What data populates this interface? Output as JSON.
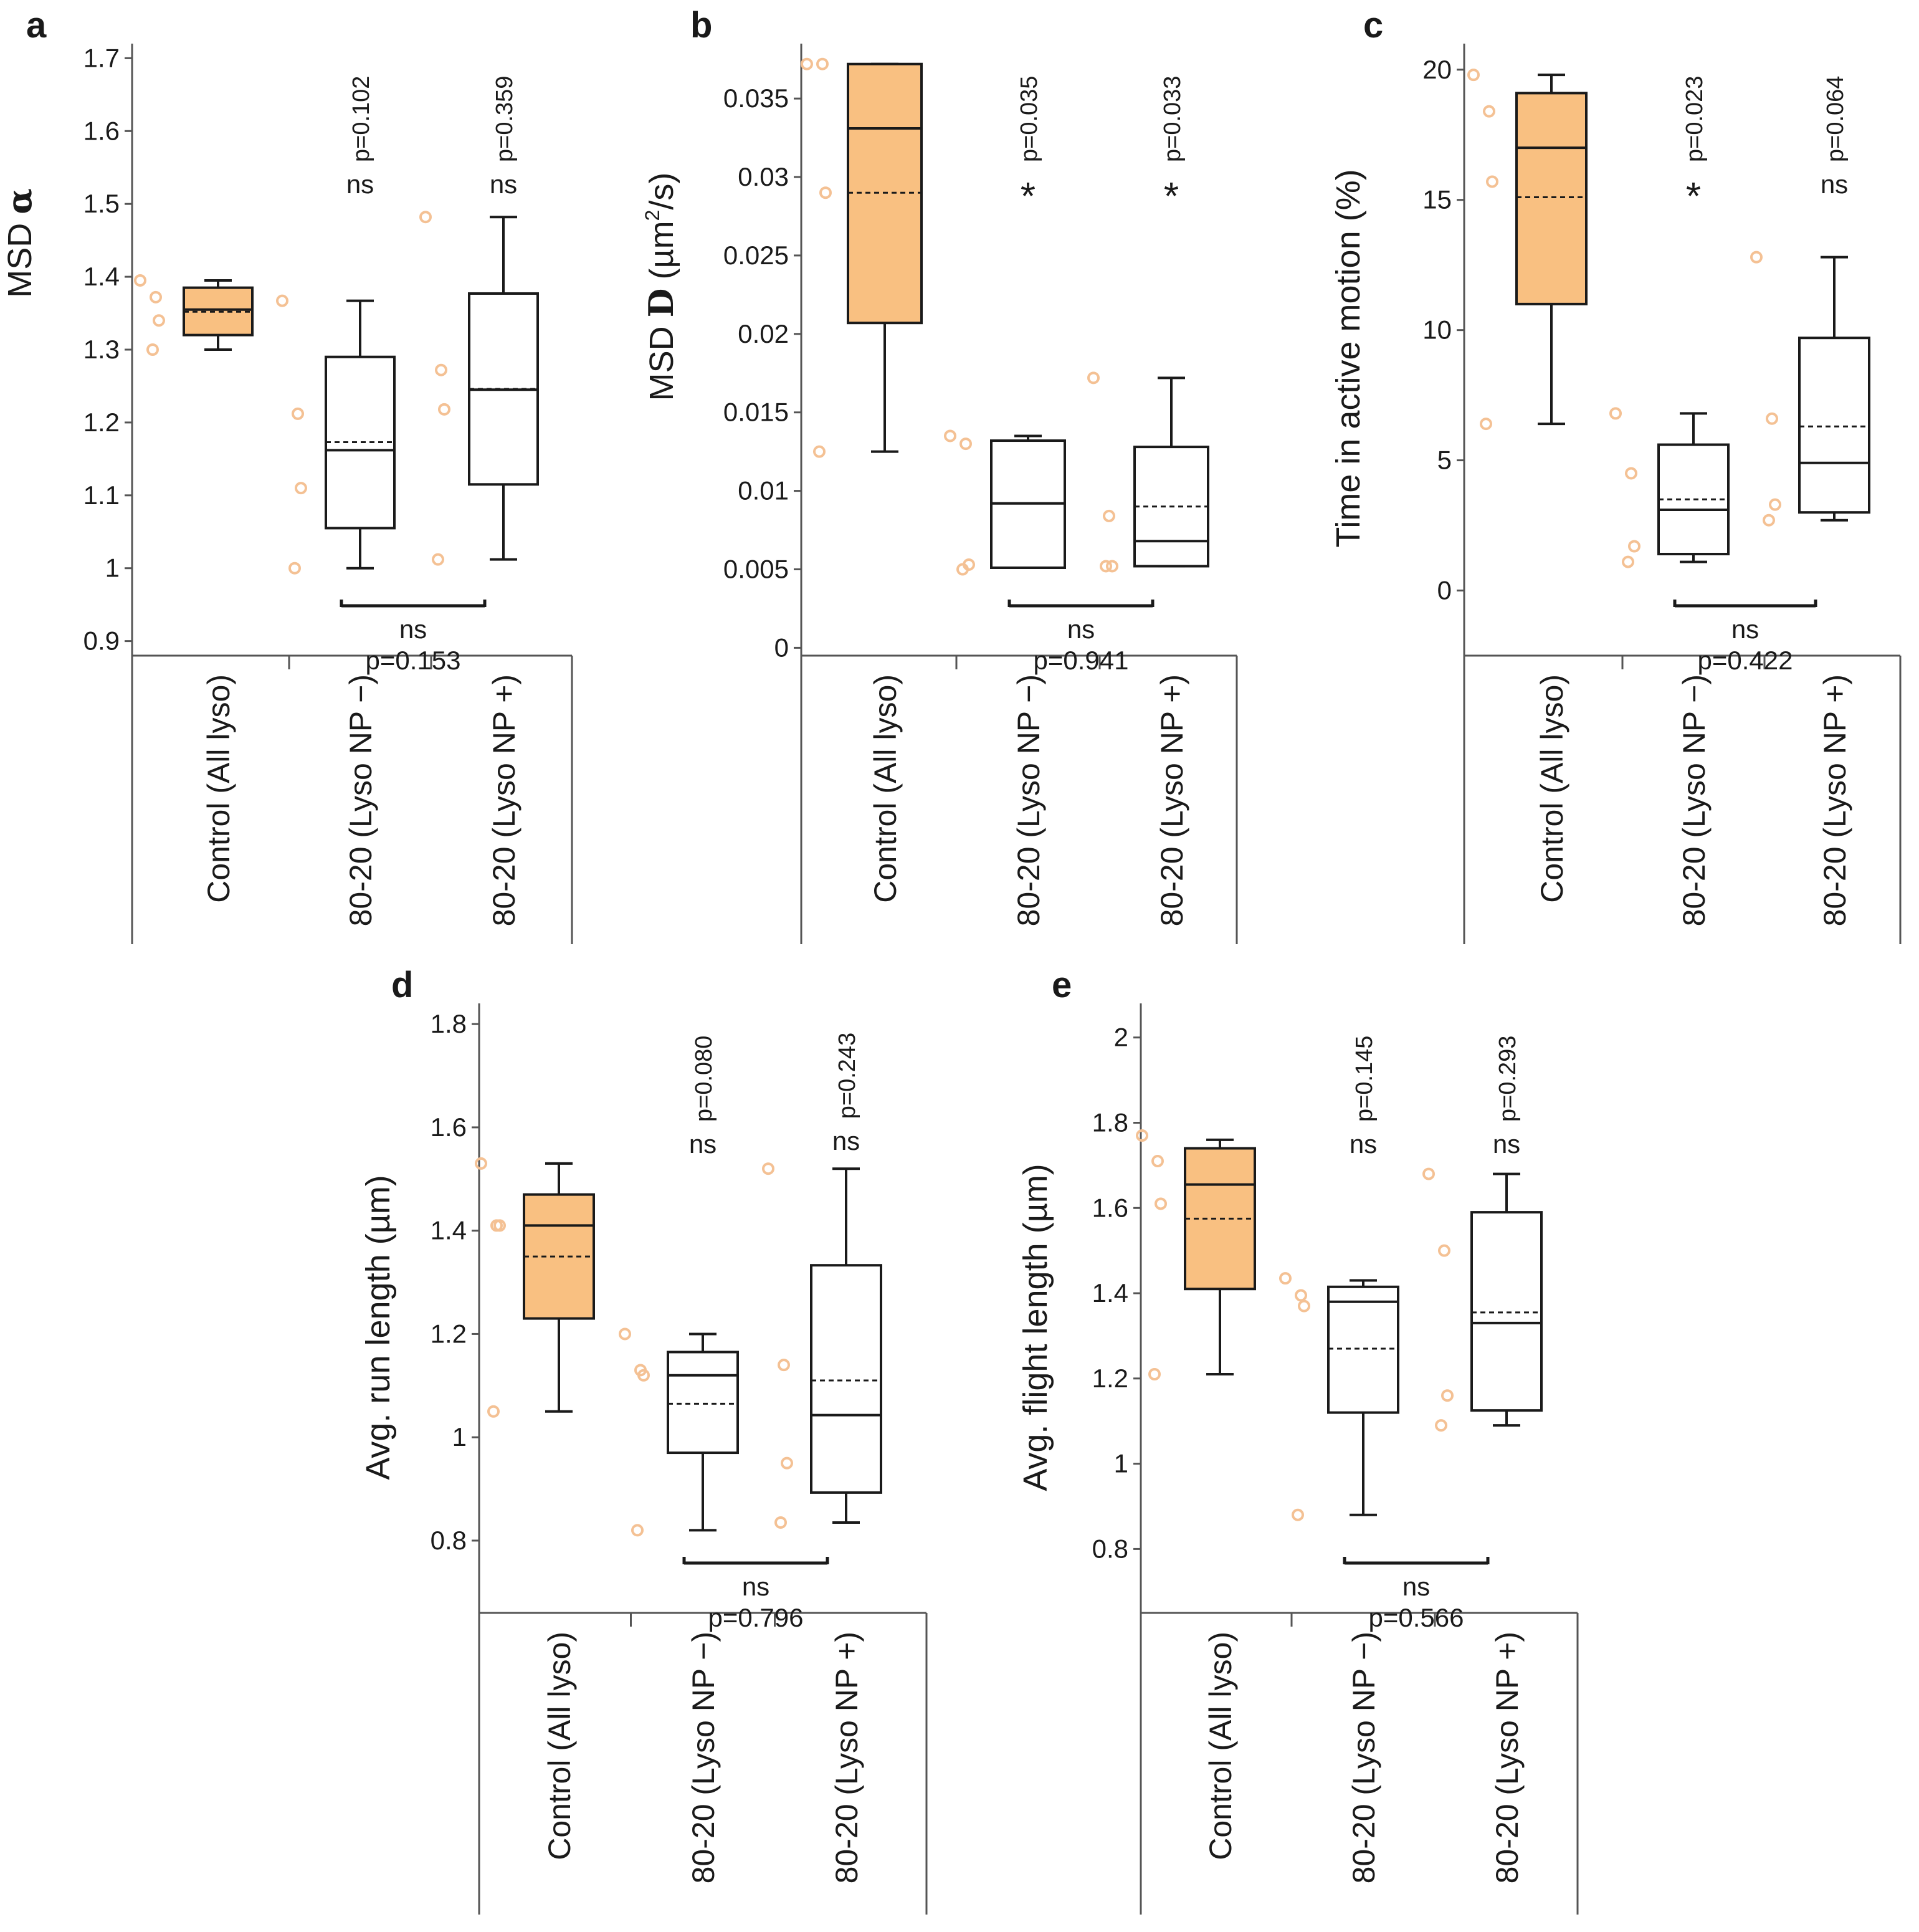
{
  "colors": {
    "control_fill": "#F9C081",
    "dot": "#F4C194",
    "line": "#1a1a1a",
    "box_other_fill": "#ffffff"
  },
  "chart_data": [
    {
      "type": "box",
      "panel_letter": "a",
      "ylabel_main": "MSD",
      "ylabel_symbol": "α",
      "ylabel_sup": "",
      "ylabel_tail": "",
      "ylim": [
        0.88,
        1.72
      ],
      "yticks": [
        0.9,
        1,
        1.1,
        1.2,
        1.3,
        1.4,
        1.5,
        1.6,
        1.7
      ],
      "ytick_labels": [
        "0.9",
        "1",
        "1.1",
        "1.2",
        "1.3",
        "1.4",
        "1.5",
        "1.6",
        "1.7"
      ],
      "categories": [
        "Control (All lyso)",
        "80-20 (Lyso NP −)",
        "80-20 (Lyso NP +)"
      ],
      "boxes": [
        {
          "whisker_low": 1.3,
          "q1": 1.32,
          "median": 1.355,
          "mean": 1.352,
          "q3": 1.385,
          "whisker_high": 1.395,
          "points": [
            1.395,
            1.372,
            1.34,
            1.3
          ]
        },
        {
          "whisker_low": 1.0,
          "q1": 1.055,
          "median": 1.162,
          "mean": 1.173,
          "q3": 1.29,
          "whisker_high": 1.367,
          "points": [
            1.367,
            1.212,
            1.11,
            1.0
          ]
        },
        {
          "whisker_low": 1.012,
          "q1": 1.115,
          "median": 1.245,
          "mean": 1.246,
          "q3": 1.377,
          "whisker_high": 1.482,
          "points": [
            1.482,
            1.272,
            1.218,
            1.012
          ]
        }
      ],
      "annotations": [
        {
          "category": 1,
          "sig": "ns",
          "p": "p=0.102"
        },
        {
          "category": 2,
          "sig": "ns",
          "p": "p=0.359"
        }
      ],
      "comparison": {
        "from": 1,
        "to": 2,
        "sig": "ns",
        "p": "p=0.153"
      }
    },
    {
      "type": "box",
      "panel_letter": "b",
      "ylabel_main": "MSD",
      "ylabel_symbol": "D",
      "ylabel_sup": "2",
      "ylabel_tail": "/s)",
      "ylabel_unit_open": "(µm",
      "ylim": [
        -0.0005,
        0.0385
      ],
      "yticks": [
        0,
        0.005,
        0.01,
        0.015,
        0.02,
        0.025,
        0.03,
        0.035
      ],
      "ytick_labels": [
        "0",
        "0.005",
        "0.01",
        "0.015",
        "0.02",
        "0.025",
        "0.03",
        "0.035"
      ],
      "categories": [
        "Control (All lyso)",
        "80-20 (Lyso NP −)",
        "80-20 (Lyso NP +)"
      ],
      "boxes": [
        {
          "whisker_low": 0.0125,
          "q1": 0.0207,
          "median": 0.0331,
          "mean": 0.029,
          "q3": 0.0372,
          "whisker_high": 0.0372,
          "points": [
            0.0372,
            0.0372,
            0.029,
            0.0125
          ]
        },
        {
          "whisker_low": 0.0051,
          "q1": 0.0051,
          "median": 0.0092,
          "mean": 0.0092,
          "q3": 0.0132,
          "whisker_high": 0.0135,
          "points": [
            0.0135,
            0.013,
            0.0053,
            0.005
          ]
        },
        {
          "whisker_low": 0.0052,
          "q1": 0.0052,
          "median": 0.0068,
          "mean": 0.009,
          "q3": 0.0128,
          "whisker_high": 0.0172,
          "points": [
            0.0172,
            0.0084,
            0.0052,
            0.0052
          ]
        }
      ],
      "annotations": [
        {
          "category": 1,
          "sig": "*",
          "p": "p=0.035"
        },
        {
          "category": 2,
          "sig": "*",
          "p": "p=0.033"
        }
      ],
      "comparison": {
        "from": 1,
        "to": 2,
        "sig": "ns",
        "p": "p=0.941"
      }
    },
    {
      "type": "box",
      "panel_letter": "c",
      "ylabel_main": "Time in active motion (%)",
      "ylabel_symbol": "",
      "ylabel_sup": "",
      "ylabel_tail": "",
      "ylim": [
        -2.5,
        21
      ],
      "yticks": [
        0,
        5,
        10,
        15,
        20
      ],
      "ytick_labels": [
        "0",
        "5",
        "10",
        "15",
        "20"
      ],
      "categories": [
        "Control (All lyso)",
        "80-20 (Lyso NP −)",
        "80-20 (Lyso NP +)"
      ],
      "boxes": [
        {
          "whisker_low": 6.4,
          "q1": 11.0,
          "median": 17.0,
          "mean": 15.1,
          "q3": 19.1,
          "whisker_high": 19.8,
          "points": [
            19.8,
            18.4,
            15.7,
            6.4
          ]
        },
        {
          "whisker_low": 1.1,
          "q1": 1.4,
          "median": 3.1,
          "mean": 3.5,
          "q3": 5.6,
          "whisker_high": 6.8,
          "points": [
            6.8,
            4.5,
            1.7,
            1.1
          ]
        },
        {
          "whisker_low": 2.7,
          "q1": 3.0,
          "median": 4.9,
          "mean": 6.3,
          "q3": 9.7,
          "whisker_high": 12.8,
          "points": [
            12.8,
            6.6,
            3.3,
            2.7
          ]
        }
      ],
      "annotations": [
        {
          "category": 1,
          "sig": "*",
          "p": "p=0.023"
        },
        {
          "category": 2,
          "sig": "ns",
          "p": "p=0.064"
        }
      ],
      "comparison": {
        "from": 1,
        "to": 2,
        "sig": "ns",
        "p": "p=0.422"
      }
    },
    {
      "type": "box",
      "panel_letter": "d",
      "ylabel_main": "Avg. run length (µm)",
      "ylabel_symbol": "",
      "ylabel_sup": "",
      "ylabel_tail": "",
      "ylim": [
        0.66,
        1.84
      ],
      "yticks": [
        0.8,
        1,
        1.2,
        1.4,
        1.6,
        1.8
      ],
      "ytick_labels": [
        "0.8",
        "1",
        "1.2",
        "1.4",
        "1.6",
        "1.8"
      ],
      "categories": [
        "Control (All lyso)",
        "80-20 (Lyso NP −)",
        "80-20 (Lyso NP +)"
      ],
      "boxes": [
        {
          "whisker_low": 1.05,
          "q1": 1.23,
          "median": 1.41,
          "mean": 1.35,
          "q3": 1.47,
          "whisker_high": 1.53,
          "points": [
            1.53,
            1.41,
            1.41,
            1.05
          ]
        },
        {
          "whisker_low": 0.82,
          "q1": 0.97,
          "median": 1.12,
          "mean": 1.065,
          "q3": 1.165,
          "whisker_high": 1.2,
          "points": [
            1.2,
            1.13,
            1.12,
            0.82
          ]
        },
        {
          "whisker_low": 0.835,
          "q1": 0.893,
          "median": 1.043,
          "mean": 1.11,
          "q3": 1.333,
          "whisker_high": 1.52,
          "points": [
            1.52,
            1.14,
            0.95,
            0.835
          ]
        }
      ],
      "annotations": [
        {
          "category": 1,
          "sig": "ns",
          "p": "p=0.080"
        },
        {
          "category": 2,
          "sig": "ns",
          "p": "p=0.243"
        }
      ],
      "comparison": {
        "from": 1,
        "to": 2,
        "sig": "ns",
        "p": "p=0.796"
      }
    },
    {
      "type": "box",
      "panel_letter": "e",
      "ylabel_main": "Avg. flight length (µm)",
      "ylabel_symbol": "",
      "ylabel_sup": "",
      "ylabel_tail": "",
      "ylim": [
        0.65,
        2.08
      ],
      "yticks": [
        0.8,
        1,
        1.2,
        1.4,
        1.6,
        1.8,
        2
      ],
      "ytick_labels": [
        "0.8",
        "1",
        "1.2",
        "1.4",
        "1.6",
        "1.8",
        "2"
      ],
      "categories": [
        "Control (All lyso)",
        "80-20 (Lyso NP −)",
        "80-20 (Lyso NP +)"
      ],
      "boxes": [
        {
          "whisker_low": 1.21,
          "q1": 1.41,
          "median": 1.655,
          "mean": 1.575,
          "q3": 1.74,
          "whisker_high": 1.76,
          "points": [
            1.77,
            1.71,
            1.61,
            1.21
          ]
        },
        {
          "whisker_low": 0.88,
          "q1": 1.12,
          "median": 1.38,
          "mean": 1.27,
          "q3": 1.415,
          "whisker_high": 1.43,
          "points": [
            1.435,
            1.395,
            1.37,
            0.88
          ]
        },
        {
          "whisker_low": 1.09,
          "q1": 1.125,
          "median": 1.33,
          "mean": 1.355,
          "q3": 1.59,
          "whisker_high": 1.68,
          "points": [
            1.68,
            1.5,
            1.16,
            1.09
          ]
        }
      ],
      "annotations": [
        {
          "category": 1,
          "sig": "ns",
          "p": "p=0.145"
        },
        {
          "category": 2,
          "sig": "ns",
          "p": "p=0.293"
        }
      ],
      "comparison": {
        "from": 1,
        "to": 2,
        "sig": "ns",
        "p": "p=0.566"
      }
    }
  ]
}
